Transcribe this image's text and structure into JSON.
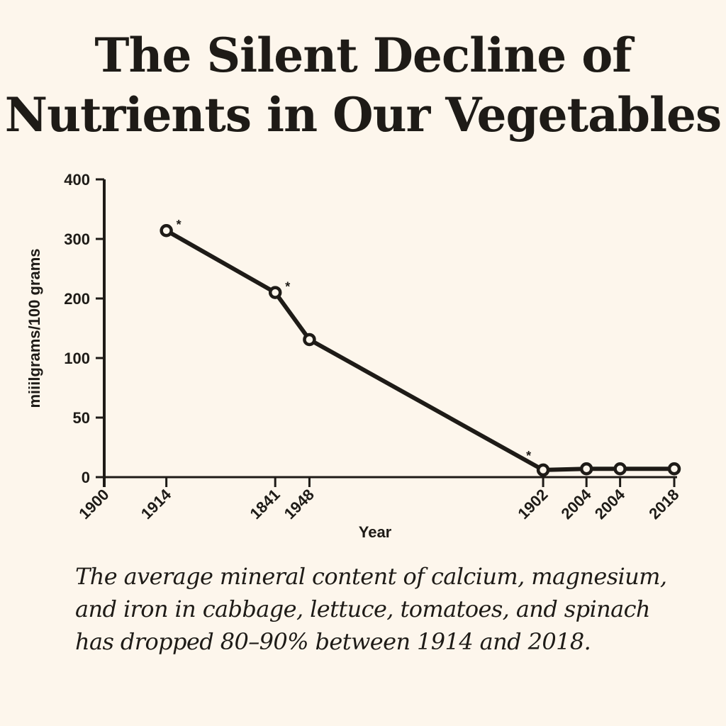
{
  "title_lines": [
    "The Silent Decline of",
    "Nutrients in Our Vegetables"
  ],
  "caption_lines": [
    "The average mineral content of calcium, magnesium,",
    "and iron in cabbage, lettuce, tomatoes, and spinach",
    "has dropped 80–90% between 1914 and 2018."
  ],
  "colors": {
    "background": "#fdf6ec",
    "ink": "#1e1b17"
  },
  "chart_data": {
    "type": "line",
    "title": "The Silent Decline of Nutrients in Our Vegetables",
    "xlabel": "Year",
    "ylabel": "miiilgrams/100 grams",
    "yticks": [
      0,
      50,
      100,
      200,
      300,
      400
    ],
    "ylim": [
      0,
      400
    ],
    "y_scale_note": "tick labels are equally spaced (non-linear)",
    "x_categories_note": "x tick labels as printed, unevenly spaced",
    "xticks": [
      {
        "label": "1900",
        "pos": 0
      },
      {
        "label": "1914",
        "pos": 0.109
      },
      {
        "label": "1841",
        "pos": 0.3
      },
      {
        "label": "1948",
        "pos": 0.36
      },
      {
        "label": "1902",
        "pos": 0.77
      },
      {
        "label": "2004",
        "pos": 0.846
      },
      {
        "label": "2004",
        "pos": 0.905
      },
      {
        "label": "2018",
        "pos": 1.0
      }
    ],
    "grid": false,
    "legend": "none",
    "series": [
      {
        "name": "mineral content",
        "points": [
          {
            "x_label": "1914",
            "y": 314,
            "asterisk": true
          },
          {
            "x_label": "1841",
            "y": 210,
            "asterisk": true
          },
          {
            "x_label": "1948",
            "y": 131,
            "asterisk": false
          },
          {
            "x_label": "1902",
            "y": 6,
            "asterisk": true
          },
          {
            "x_label": "2004",
            "y": 7,
            "asterisk": false
          },
          {
            "x_label": "2004",
            "y": 7,
            "asterisk": false
          },
          {
            "x_label": "2018",
            "y": 7,
            "asterisk": false
          }
        ]
      }
    ],
    "point_tick_index": [
      1,
      2,
      3,
      4,
      5,
      6,
      7
    ],
    "annotation_marker": "*"
  }
}
